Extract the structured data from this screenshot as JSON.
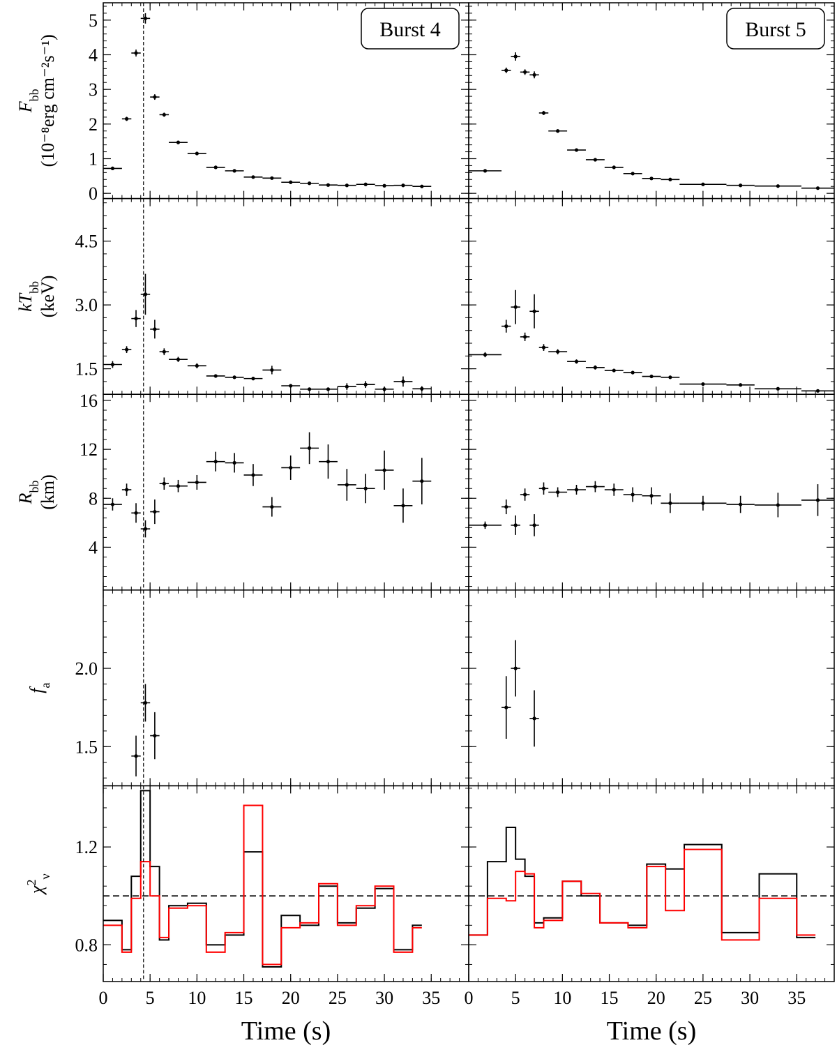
{
  "chart_data": {
    "type": "scatter",
    "xlabel": "Time (s)",
    "xlim": [
      0,
      39
    ],
    "xticks": [
      0,
      5,
      10,
      15,
      20,
      25,
      30,
      35
    ],
    "panels": [
      {
        "key": "flux",
        "ylabel_lines": [
          "F_bb",
          "(10⁻⁸erg cm⁻²s⁻¹)"
        ],
        "ylim": [
          -0.15,
          5.5
        ],
        "yticks": [
          0,
          1,
          2,
          3,
          4,
          5
        ],
        "ytick_labels": [
          "0",
          "1",
          "2",
          "3",
          "4",
          "5"
        ]
      },
      {
        "key": "kT",
        "ylabel_lines": [
          "kT_bb",
          "(keV)"
        ],
        "ylim": [
          0.9,
          5.5
        ],
        "yticks": [
          1.5,
          3.0,
          4.5
        ],
        "ytick_labels": [
          "1.5",
          "3.0",
          "4.5"
        ]
      },
      {
        "key": "R",
        "ylabel_lines": [
          "R_bb",
          "(km)"
        ],
        "ylim": [
          0.5,
          16.5
        ],
        "yticks": [
          4,
          8,
          12,
          16
        ],
        "ytick_labels": [
          "4",
          "8",
          "12",
          "16"
        ]
      },
      {
        "key": "fa",
        "ylabel_lines": [
          "f_a"
        ],
        "ylim": [
          1.25,
          2.5
        ],
        "yticks": [
          1.5,
          2.0
        ],
        "ytick_labels": [
          "1.5",
          "2.0"
        ]
      },
      {
        "key": "chi",
        "ylabel_lines": [
          "χ²_ν"
        ],
        "ylim": [
          0.65,
          1.45
        ],
        "yticks": [
          0.8,
          1.2
        ],
        "ytick_labels": [
          "0.8",
          "1.2"
        ]
      }
    ],
    "bursts": [
      {
        "label": "Burst 4",
        "vline_x": 4.3,
        "flux": [
          [
            0,
            2,
            0.72,
            0.05
          ],
          [
            2,
            3,
            2.15,
            0.06
          ],
          [
            3,
            4,
            4.05,
            0.1
          ],
          [
            4,
            5,
            5.05,
            0.15
          ],
          [
            5,
            6,
            2.78,
            0.08
          ],
          [
            6,
            7,
            2.27,
            0.06
          ],
          [
            7,
            9,
            1.47,
            0.05
          ],
          [
            9,
            11,
            1.15,
            0.04
          ],
          [
            11,
            13,
            0.75,
            0.04
          ],
          [
            13,
            15,
            0.65,
            0.04
          ],
          [
            15,
            17,
            0.47,
            0.03
          ],
          [
            17,
            19,
            0.44,
            0.03
          ],
          [
            19,
            21,
            0.32,
            0.03
          ],
          [
            21,
            23,
            0.29,
            0.03
          ],
          [
            23,
            25,
            0.24,
            0.03
          ],
          [
            25,
            27,
            0.23,
            0.03
          ],
          [
            27,
            29,
            0.26,
            0.03
          ],
          [
            29,
            31,
            0.22,
            0.03
          ],
          [
            31,
            33,
            0.23,
            0.03
          ],
          [
            33,
            35,
            0.2,
            0.03
          ]
        ],
        "kT": [
          [
            0,
            2,
            1.6,
            0.08
          ],
          [
            2,
            3,
            1.95,
            0.08
          ],
          [
            3,
            4,
            2.68,
            0.2
          ],
          [
            4,
            5,
            3.25,
            0.48
          ],
          [
            5,
            6,
            2.43,
            0.22
          ],
          [
            6,
            7,
            1.9,
            0.08
          ],
          [
            7,
            9,
            1.72,
            0.06
          ],
          [
            9,
            11,
            1.57,
            0.06
          ],
          [
            11,
            13,
            1.33,
            0.04
          ],
          [
            13,
            15,
            1.3,
            0.04
          ],
          [
            15,
            17,
            1.27,
            0.04
          ],
          [
            17,
            19,
            1.47,
            0.1
          ],
          [
            19,
            21,
            1.1,
            0.04
          ],
          [
            21,
            23,
            1.02,
            0.04
          ],
          [
            23,
            25,
            1.02,
            0.04
          ],
          [
            25,
            27,
            1.08,
            0.08
          ],
          [
            27,
            29,
            1.13,
            0.08
          ],
          [
            29,
            31,
            1.02,
            0.06
          ],
          [
            31,
            33,
            1.2,
            0.12
          ],
          [
            33,
            35,
            1.03,
            0.06
          ]
        ],
        "R": [
          [
            0,
            2,
            7.5,
            0.5
          ],
          [
            2,
            3,
            8.7,
            0.5
          ],
          [
            3,
            4,
            6.8,
            0.8
          ],
          [
            4,
            5,
            5.5,
            0.7
          ],
          [
            5,
            6,
            6.9,
            1.0
          ],
          [
            6,
            7,
            9.2,
            0.5
          ],
          [
            7,
            9,
            9.0,
            0.5
          ],
          [
            9,
            11,
            9.3,
            0.6
          ],
          [
            11,
            13,
            11.0,
            0.8
          ],
          [
            13,
            15,
            10.9,
            0.8
          ],
          [
            15,
            17,
            9.9,
            0.9
          ],
          [
            17,
            19,
            7.3,
            0.8
          ],
          [
            19,
            21,
            10.5,
            1.0
          ],
          [
            21,
            23,
            12.1,
            1.3
          ],
          [
            23,
            25,
            11.0,
            1.4
          ],
          [
            25,
            27,
            9.1,
            1.3
          ],
          [
            27,
            29,
            8.8,
            1.2
          ],
          [
            29,
            31,
            10.3,
            1.6
          ],
          [
            31,
            33,
            7.4,
            1.4
          ],
          [
            33,
            35,
            9.4,
            1.9
          ]
        ],
        "fa": [
          [
            3,
            4,
            1.44,
            0.13
          ],
          [
            4,
            5,
            1.78,
            0.12
          ],
          [
            5,
            6,
            1.57,
            0.15
          ]
        ],
        "chi_black": [
          [
            0,
            2,
            0.9
          ],
          [
            2,
            3,
            0.78
          ],
          [
            3,
            4,
            1.08
          ],
          [
            4,
            5,
            1.43
          ],
          [
            5,
            6,
            1.12
          ],
          [
            6,
            7,
            0.82
          ],
          [
            7,
            9,
            0.96
          ],
          [
            9,
            11,
            0.97
          ],
          [
            11,
            13,
            0.8
          ],
          [
            13,
            15,
            0.84
          ],
          [
            15,
            17,
            1.18
          ],
          [
            17,
            19,
            0.71
          ],
          [
            19,
            21,
            0.92
          ],
          [
            21,
            23,
            0.88
          ],
          [
            23,
            25,
            1.04
          ],
          [
            25,
            27,
            0.89
          ],
          [
            27,
            29,
            0.95
          ],
          [
            29,
            31,
            1.03
          ],
          [
            31,
            33,
            0.78
          ],
          [
            33,
            34,
            0.88
          ]
        ],
        "chi_red": [
          [
            0,
            2,
            0.88
          ],
          [
            2,
            3,
            0.77
          ],
          [
            3,
            4,
            0.99
          ],
          [
            4,
            5,
            1.14
          ],
          [
            5,
            6,
            1.0
          ],
          [
            6,
            7,
            0.83
          ],
          [
            7,
            9,
            0.95
          ],
          [
            9,
            11,
            0.96
          ],
          [
            11,
            13,
            0.77
          ],
          [
            13,
            15,
            0.85
          ],
          [
            15,
            17,
            1.37
          ],
          [
            17,
            19,
            0.72
          ],
          [
            19,
            21,
            0.87
          ],
          [
            21,
            23,
            0.89
          ],
          [
            23,
            25,
            1.05
          ],
          [
            25,
            27,
            0.88
          ],
          [
            27,
            29,
            0.96
          ],
          [
            29,
            31,
            1.04
          ],
          [
            31,
            33,
            0.77
          ],
          [
            33,
            34,
            0.87
          ]
        ]
      },
      {
        "label": "Burst 5",
        "vline_x": null,
        "flux": [
          [
            0,
            3.5,
            0.65,
            0.04
          ],
          [
            3.5,
            4.5,
            3.55,
            0.08
          ],
          [
            4.5,
            5.5,
            3.95,
            0.12
          ],
          [
            5.5,
            6.5,
            3.5,
            0.08
          ],
          [
            6.5,
            7.5,
            3.42,
            0.1
          ],
          [
            7.5,
            8.5,
            2.32,
            0.06
          ],
          [
            8.5,
            10.5,
            1.8,
            0.05
          ],
          [
            10.5,
            12.5,
            1.25,
            0.04
          ],
          [
            12.5,
            14.5,
            0.97,
            0.04
          ],
          [
            14.5,
            16.5,
            0.75,
            0.03
          ],
          [
            16.5,
            18.5,
            0.57,
            0.03
          ],
          [
            18.5,
            20.5,
            0.43,
            0.03
          ],
          [
            20.5,
            22.5,
            0.4,
            0.03
          ],
          [
            22.5,
            27.5,
            0.26,
            0.02
          ],
          [
            27.5,
            30.5,
            0.23,
            0.02
          ],
          [
            30.5,
            35.5,
            0.21,
            0.02
          ],
          [
            35.5,
            39,
            0.15,
            0.02
          ]
        ],
        "kT": [
          [
            0,
            3.5,
            1.83,
            0.06
          ],
          [
            3.5,
            4.5,
            2.5,
            0.15
          ],
          [
            4.5,
            5.5,
            2.95,
            0.4
          ],
          [
            5.5,
            6.5,
            2.25,
            0.1
          ],
          [
            6.5,
            7.5,
            2.85,
            0.4
          ],
          [
            7.5,
            8.5,
            2.0,
            0.08
          ],
          [
            8.5,
            10.5,
            1.9,
            0.06
          ],
          [
            10.5,
            12.5,
            1.67,
            0.05
          ],
          [
            12.5,
            14.5,
            1.53,
            0.05
          ],
          [
            14.5,
            16.5,
            1.46,
            0.04
          ],
          [
            16.5,
            18.5,
            1.41,
            0.04
          ],
          [
            18.5,
            20.5,
            1.32,
            0.04
          ],
          [
            20.5,
            22.5,
            1.3,
            0.04
          ],
          [
            22.5,
            27.5,
            1.14,
            0.03
          ],
          [
            27.5,
            30.5,
            1.12,
            0.03
          ],
          [
            30.5,
            35.5,
            1.03,
            0.03
          ],
          [
            35.5,
            39,
            0.98,
            0.03
          ]
        ],
        "R": [
          [
            0,
            3.5,
            5.8,
            0.3
          ],
          [
            3.5,
            4.5,
            7.3,
            0.6
          ],
          [
            4.5,
            5.5,
            5.8,
            0.8
          ],
          [
            5.5,
            6.5,
            8.3,
            0.5
          ],
          [
            6.5,
            7.5,
            5.8,
            0.9
          ],
          [
            7.5,
            8.5,
            8.8,
            0.5
          ],
          [
            8.5,
            10.5,
            8.5,
            0.4
          ],
          [
            10.5,
            12.5,
            8.7,
            0.4
          ],
          [
            12.5,
            14.5,
            8.95,
            0.45
          ],
          [
            14.5,
            16.5,
            8.7,
            0.5
          ],
          [
            16.5,
            18.5,
            8.3,
            0.6
          ],
          [
            18.5,
            20.5,
            8.2,
            0.7
          ],
          [
            20.5,
            22.5,
            7.6,
            0.8
          ],
          [
            22.5,
            27.5,
            7.6,
            0.6
          ],
          [
            27.5,
            30.5,
            7.5,
            0.7
          ],
          [
            30.5,
            35.5,
            7.45,
            1.0
          ],
          [
            35.5,
            39,
            7.85,
            1.3
          ]
        ],
        "fa": [
          [
            3.5,
            4.5,
            1.75,
            0.2
          ],
          [
            4.5,
            5.5,
            2.0,
            0.18
          ],
          [
            6.5,
            7.5,
            1.68,
            0.18
          ]
        ],
        "chi_black": [
          [
            0,
            2,
            0.84
          ],
          [
            2,
            4,
            1.14
          ],
          [
            4,
            5,
            1.28
          ],
          [
            5,
            6,
            1.15
          ],
          [
            6,
            7,
            1.08
          ],
          [
            7,
            8,
            0.89
          ],
          [
            8,
            10,
            0.91
          ],
          [
            10,
            12,
            1.06
          ],
          [
            12,
            14,
            1.0
          ],
          [
            14,
            17,
            0.89
          ],
          [
            17,
            19,
            0.88
          ],
          [
            19,
            21,
            1.13
          ],
          [
            21,
            23,
            1.11
          ],
          [
            23,
            27,
            1.21
          ],
          [
            27,
            31,
            0.85
          ],
          [
            31,
            35,
            1.09
          ],
          [
            35,
            37,
            0.83
          ]
        ],
        "chi_red": [
          [
            0,
            2,
            0.84
          ],
          [
            2,
            4,
            0.99
          ],
          [
            4,
            5,
            0.98
          ],
          [
            5,
            6,
            1.1
          ],
          [
            6,
            7,
            1.09
          ],
          [
            7,
            8,
            0.87
          ],
          [
            8,
            10,
            0.9
          ],
          [
            10,
            12,
            1.06
          ],
          [
            12,
            14,
            1.01
          ],
          [
            14,
            17,
            0.89
          ],
          [
            17,
            19,
            0.87
          ],
          [
            19,
            21,
            1.12
          ],
          [
            21,
            23,
            0.94
          ],
          [
            23,
            27,
            1.19
          ],
          [
            27,
            31,
            0.82
          ],
          [
            31,
            35,
            0.99
          ],
          [
            35,
            37,
            0.84
          ]
        ]
      }
    ],
    "chi_reference": 1.0,
    "chi_series_colors": {
      "model_a": "#000000",
      "model_b": "#ff0000"
    }
  }
}
